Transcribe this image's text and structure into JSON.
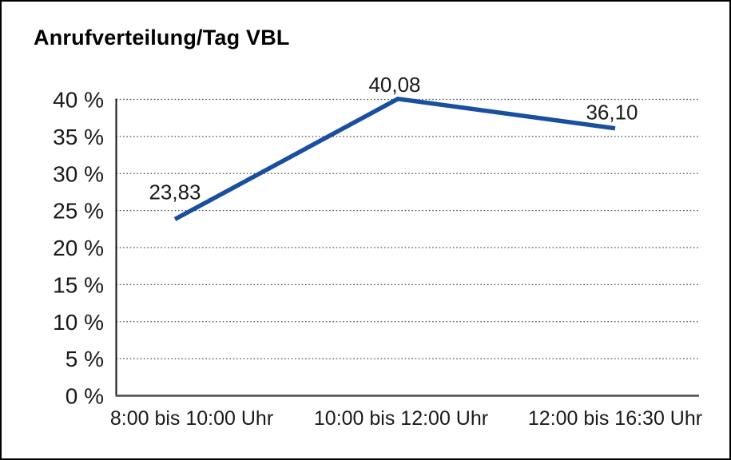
{
  "chart_data": {
    "type": "line",
    "title": "Anrufverteilung/Tag VBL",
    "categories": [
      "8:00 bis 10:00 Uhr",
      "10:00 bis 12:00 Uhr",
      "12:00 bis 16:30 Uhr"
    ],
    "values": [
      23.83,
      40.08,
      36.1
    ],
    "value_labels": [
      "23,83",
      "40,08",
      "36,10"
    ],
    "y_ticks": [
      {
        "value": 0,
        "label": "0 %"
      },
      {
        "value": 5,
        "label": "5 %"
      },
      {
        "value": 10,
        "label": "10 %"
      },
      {
        "value": 15,
        "label": "15 %"
      },
      {
        "value": 20,
        "label": "20 %"
      },
      {
        "value": 25,
        "label": "25 %"
      },
      {
        "value": 30,
        "label": "30 %"
      },
      {
        "value": 35,
        "label": "35 %"
      },
      {
        "value": 40,
        "label": "40 %"
      }
    ],
    "ylim": [
      0,
      40
    ],
    "xlabel": "",
    "ylabel": "",
    "legend": "none",
    "grid": "horizontal-dotted",
    "colors": {
      "line": "#184f9f",
      "y_axis": "#111111",
      "x_axis": "#4d4d4d",
      "gridline": "#4d4d4d",
      "text": "#1a1a1a",
      "background": "#ffffff",
      "frame_border": "#000000"
    }
  }
}
